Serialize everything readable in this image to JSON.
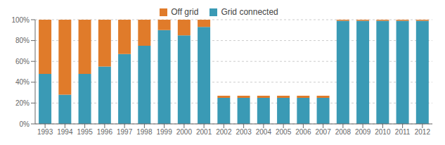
{
  "chart_data": {
    "type": "bar",
    "stacked": true,
    "categories": [
      "1993",
      "1994",
      "1995",
      "1996",
      "1997",
      "1998",
      "1999",
      "2000",
      "2001",
      "2002",
      "2003",
      "2004",
      "2005",
      "2006",
      "2007",
      "2008",
      "2009",
      "2010",
      "2011",
      "2012"
    ],
    "series": [
      {
        "name": "Grid connected",
        "color": "#3a9ab5",
        "values": [
          48,
          28,
          48,
          55,
          67,
          75,
          90,
          85,
          93,
          25,
          25,
          25,
          25,
          25,
          25,
          99,
          99,
          99,
          99,
          99
        ]
      },
      {
        "name": "Off grid",
        "color": "#e07b2a",
        "values": [
          52,
          72,
          52,
          45,
          33,
          25,
          10,
          15,
          7,
          2,
          2,
          2,
          2,
          2,
          2,
          1,
          1,
          1,
          1,
          1
        ]
      }
    ],
    "ylim": [
      0,
      100
    ],
    "yticks": [
      {
        "value": 0,
        "label": "0%"
      },
      {
        "value": 20,
        "label": "20%"
      },
      {
        "value": 40,
        "label": "40%"
      },
      {
        "value": 60,
        "label": "60%"
      },
      {
        "value": 80,
        "label": "80%"
      },
      {
        "value": 100,
        "label": "100%"
      }
    ],
    "grid": true
  }
}
